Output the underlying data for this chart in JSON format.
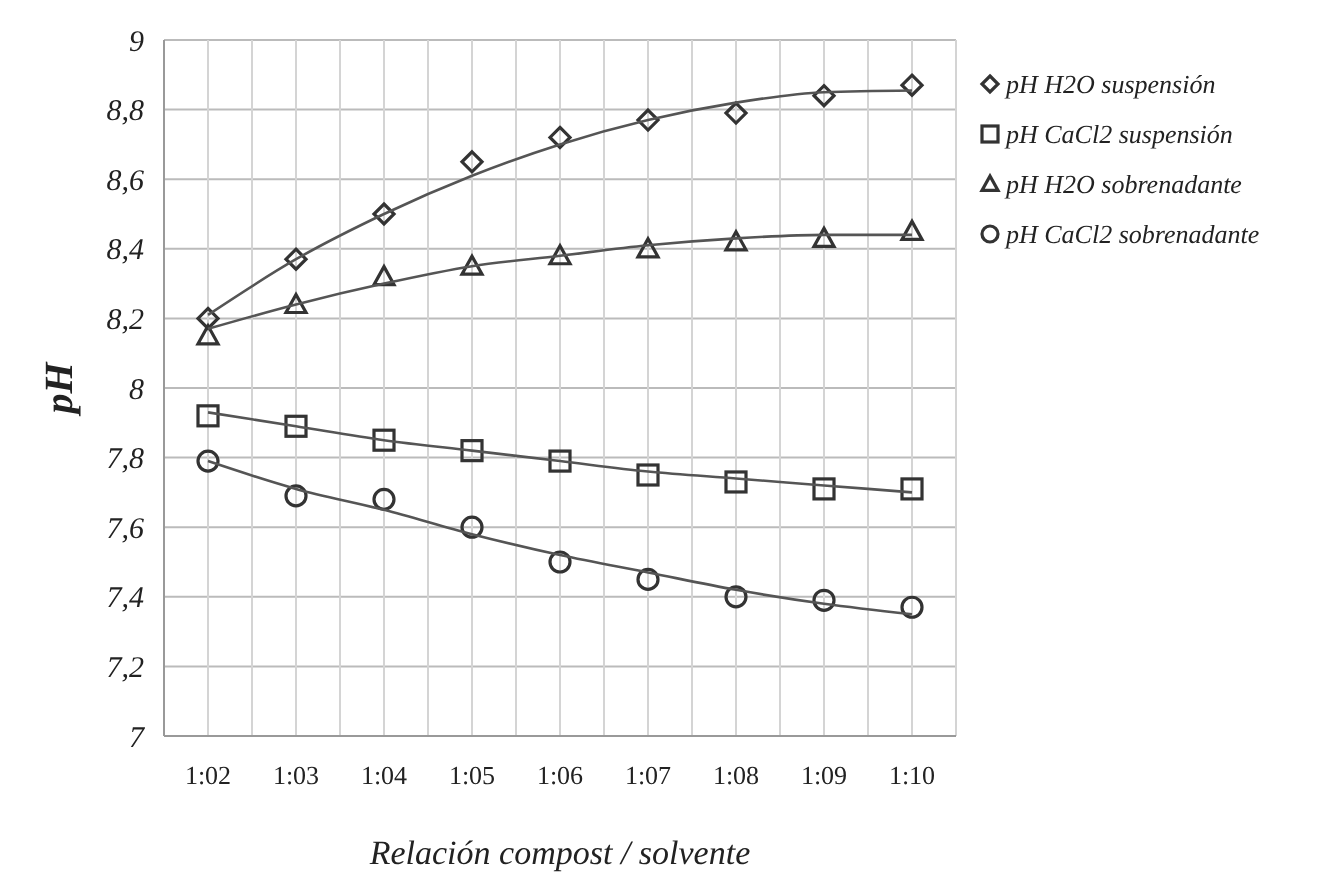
{
  "chart_data": {
    "type": "scatter",
    "xlabel": "Relación compost / solvente",
    "ylabel": "pH",
    "categories": [
      "1:02",
      "1:03",
      "1:04",
      "1:05",
      "1:06",
      "1:07",
      "1:08",
      "1:09",
      "1:10"
    ],
    "series": [
      {
        "name": "pH H2O suspensión",
        "color": "#333333",
        "marker": "diamond",
        "values": [
          8.2,
          8.37,
          8.5,
          8.65,
          8.72,
          8.77,
          8.79,
          8.84,
          8.87
        ]
      },
      {
        "name": "pH CaCl2 suspensión",
        "color": "#333333",
        "marker": "square",
        "values": [
          7.92,
          7.89,
          7.85,
          7.82,
          7.79,
          7.75,
          7.73,
          7.71,
          7.71
        ]
      },
      {
        "name": "pH H2O sobrenadante",
        "color": "#333333",
        "marker": "triangle",
        "values": [
          8.15,
          8.24,
          8.32,
          8.35,
          8.38,
          8.4,
          8.42,
          8.43,
          8.45
        ]
      },
      {
        "name": "pH CaCl2 sobrenadante",
        "color": "#333333",
        "marker": "circle",
        "values": [
          7.79,
          7.69,
          7.68,
          7.6,
          7.5,
          7.45,
          7.4,
          7.39,
          7.37
        ]
      },
      {
        "type": "line",
        "color": "#555555",
        "values": [
          8.21,
          8.37,
          8.5,
          8.61,
          8.7,
          8.77,
          8.82,
          8.85,
          8.855
        ]
      },
      {
        "type": "line",
        "color": "#555555",
        "values": [
          7.93,
          7.89,
          7.85,
          7.82,
          7.79,
          7.76,
          7.74,
          7.72,
          7.7
        ]
      },
      {
        "type": "line",
        "color": "#555555",
        "values": [
          8.17,
          8.24,
          8.3,
          8.35,
          8.38,
          8.41,
          8.43,
          8.44,
          8.44
        ]
      },
      {
        "type": "line",
        "color": "#555555",
        "values": [
          7.79,
          7.71,
          7.65,
          7.58,
          7.52,
          7.47,
          7.42,
          7.38,
          7.35
        ]
      }
    ],
    "ylim": [
      7,
      9
    ],
    "yticks": [
      7,
      {
        "value": 7.2,
        "label": "7,2"
      },
      {
        "value": 7.4,
        "label": "7,4"
      },
      {
        "value": 7.6,
        "label": "7,6"
      },
      {
        "value": 7.8,
        "label": "7,8"
      },
      8,
      {
        "value": 8.2,
        "label": "8,2"
      },
      {
        "value": 8.4,
        "label": "8,4"
      },
      {
        "value": 8.6,
        "label": "8,6"
      },
      {
        "value": 8.8,
        "label": "8,8"
      },
      9
    ],
    "grid": true,
    "legend": "right"
  }
}
